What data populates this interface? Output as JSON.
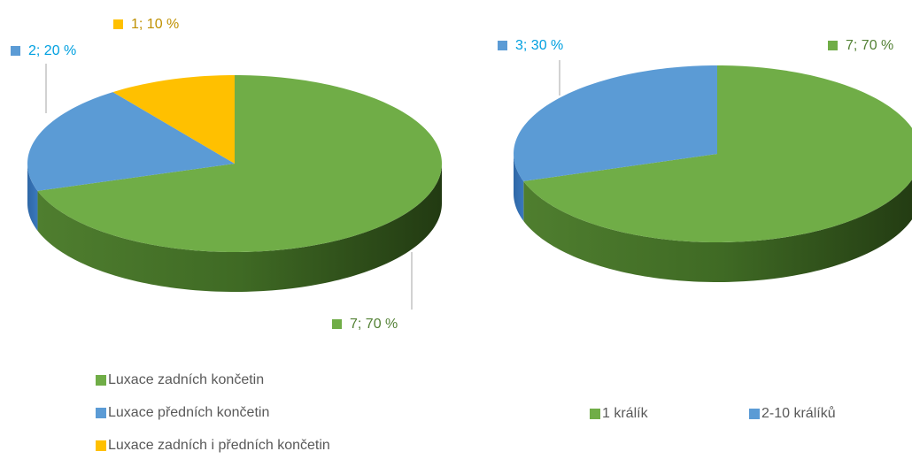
{
  "chart_data": [
    {
      "type": "pie3d",
      "categories": [
        "Luxace zadních končetin",
        "Luxace předních končetin",
        "Luxace zadních i předních končetin"
      ],
      "values": [
        7,
        2,
        1
      ],
      "percents": [
        70,
        20,
        10
      ],
      "value_labels": [
        "7; 70 %",
        "2; 20 %",
        "1; 10 %"
      ],
      "colors": [
        "#70ad47",
        "#5b9bd5",
        "#ffc000"
      ],
      "label_colors": [
        "#538135",
        "#00a0e0",
        "#bf9000"
      ],
      "legend": "bottom-left-vertical"
    },
    {
      "type": "pie3d",
      "categories": [
        "1 králík",
        "2-10 králíků"
      ],
      "values": [
        7,
        3
      ],
      "percents": [
        70,
        30
      ],
      "value_labels": [
        "7; 70 %",
        "3; 30 %"
      ],
      "colors": [
        "#70ad47",
        "#5b9bd5"
      ],
      "label_colors": [
        "#538135",
        "#00a0e0"
      ],
      "legend": "bottom-horizontal"
    }
  ]
}
